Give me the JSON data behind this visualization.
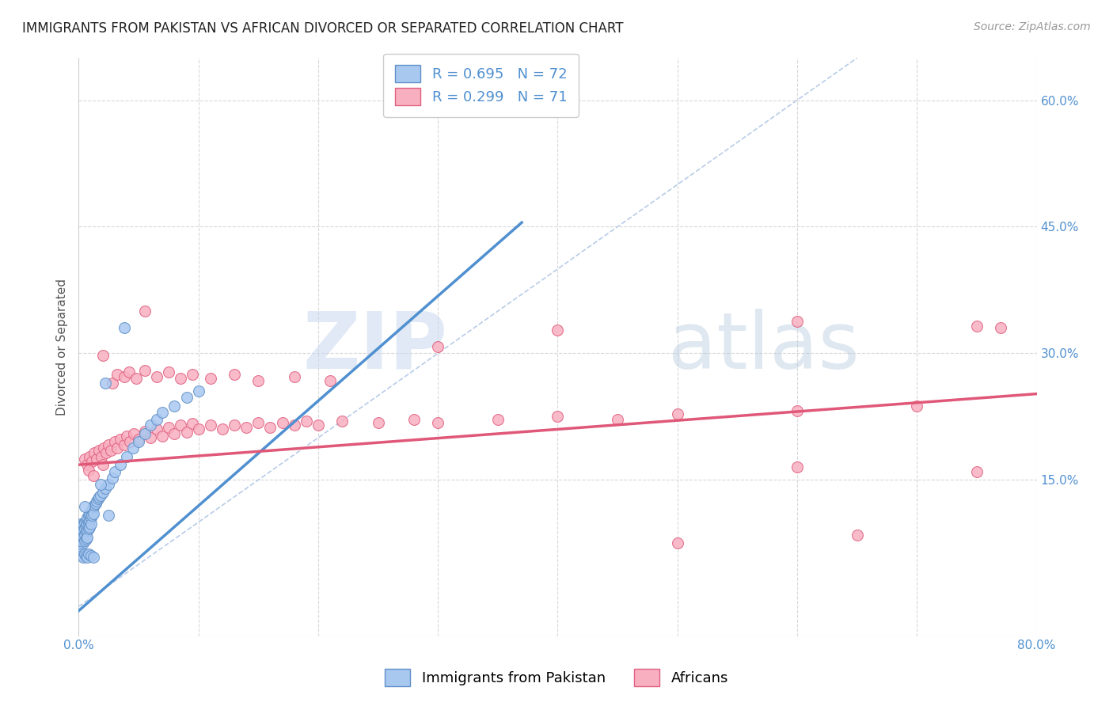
{
  "title": "IMMIGRANTS FROM PAKISTAN VS AFRICAN DIVORCED OR SEPARATED CORRELATION CHART",
  "source": "Source: ZipAtlas.com",
  "ylabel": "Divorced or Separated",
  "xlabel": "",
  "watermark_zip": "ZIP",
  "watermark_atlas": "atlas",
  "xlim": [
    0.0,
    0.8
  ],
  "ylim": [
    -0.035,
    0.65
  ],
  "ytick_positions": [
    0.15,
    0.3,
    0.45,
    0.6
  ],
  "yticklabels": [
    "15.0%",
    "30.0%",
    "45.0%",
    "60.0%"
  ],
  "grid_color": "#d8d8d8",
  "background_color": "#ffffff",
  "series1_label": "Immigrants from Pakistan",
  "series2_label": "Africans",
  "series1_color": "#a8c8f0",
  "series2_color": "#f8b0c0",
  "series1_edge_color": "#6090c8",
  "series2_edge_color": "#e06080",
  "series1_line_color": "#5090d0",
  "series2_line_color": "#e05878",
  "diagonal_color": "#b8cce8",
  "title_fontsize": 12,
  "axis_label_fontsize": 11,
  "tick_fontsize": 11,
  "source_fontsize": 10,
  "legend_fontsize": 13,
  "blue_line_x": [
    0.0,
    0.37
  ],
  "blue_line_y": [
    -0.005,
    0.455
  ],
  "pink_line_x": [
    0.0,
    0.8
  ],
  "pink_line_y": [
    0.168,
    0.252
  ],
  "diag_line_x": [
    0.0,
    0.65
  ],
  "diag_line_y": [
    0.0,
    0.65
  ],
  "pakistan_points": [
    [
      0.001,
      0.095
    ],
    [
      0.001,
      0.09
    ],
    [
      0.001,
      0.085
    ],
    [
      0.002,
      0.098
    ],
    [
      0.002,
      0.088
    ],
    [
      0.002,
      0.08
    ],
    [
      0.003,
      0.095
    ],
    [
      0.003,
      0.088
    ],
    [
      0.003,
      0.082
    ],
    [
      0.003,
      0.078
    ],
    [
      0.004,
      0.098
    ],
    [
      0.004,
      0.09
    ],
    [
      0.004,
      0.083
    ],
    [
      0.004,
      0.075
    ],
    [
      0.005,
      0.1
    ],
    [
      0.005,
      0.092
    ],
    [
      0.005,
      0.085
    ],
    [
      0.005,
      0.078
    ],
    [
      0.006,
      0.102
    ],
    [
      0.006,
      0.095
    ],
    [
      0.006,
      0.088
    ],
    [
      0.006,
      0.08
    ],
    [
      0.007,
      0.105
    ],
    [
      0.007,
      0.098
    ],
    [
      0.007,
      0.09
    ],
    [
      0.007,
      0.082
    ],
    [
      0.008,
      0.108
    ],
    [
      0.008,
      0.1
    ],
    [
      0.008,
      0.092
    ],
    [
      0.009,
      0.11
    ],
    [
      0.009,
      0.102
    ],
    [
      0.009,
      0.094
    ],
    [
      0.01,
      0.112
    ],
    [
      0.01,
      0.105
    ],
    [
      0.01,
      0.098
    ],
    [
      0.011,
      0.115
    ],
    [
      0.011,
      0.108
    ],
    [
      0.012,
      0.118
    ],
    [
      0.012,
      0.11
    ],
    [
      0.013,
      0.12
    ],
    [
      0.014,
      0.122
    ],
    [
      0.015,
      0.125
    ],
    [
      0.016,
      0.128
    ],
    [
      0.017,
      0.13
    ],
    [
      0.018,
      0.132
    ],
    [
      0.02,
      0.135
    ],
    [
      0.022,
      0.14
    ],
    [
      0.025,
      0.145
    ],
    [
      0.028,
      0.152
    ],
    [
      0.03,
      0.16
    ],
    [
      0.035,
      0.168
    ],
    [
      0.04,
      0.178
    ],
    [
      0.045,
      0.188
    ],
    [
      0.05,
      0.195
    ],
    [
      0.055,
      0.205
    ],
    [
      0.06,
      0.215
    ],
    [
      0.065,
      0.222
    ],
    [
      0.07,
      0.23
    ],
    [
      0.08,
      0.238
    ],
    [
      0.09,
      0.248
    ],
    [
      0.1,
      0.255
    ],
    [
      0.001,
      0.065
    ],
    [
      0.002,
      0.062
    ],
    [
      0.003,
      0.06
    ],
    [
      0.004,
      0.058
    ],
    [
      0.005,
      0.062
    ],
    [
      0.006,
      0.06
    ],
    [
      0.007,
      0.058
    ],
    [
      0.008,
      0.062
    ],
    [
      0.01,
      0.06
    ],
    [
      0.012,
      0.058
    ],
    [
      0.022,
      0.265
    ],
    [
      0.038,
      0.33
    ],
    [
      0.005,
      0.118
    ],
    [
      0.018,
      0.145
    ],
    [
      0.025,
      0.108
    ]
  ],
  "african_points": [
    [
      0.005,
      0.175
    ],
    [
      0.007,
      0.168
    ],
    [
      0.009,
      0.178
    ],
    [
      0.011,
      0.172
    ],
    [
      0.013,
      0.182
    ],
    [
      0.015,
      0.175
    ],
    [
      0.017,
      0.185
    ],
    [
      0.019,
      0.178
    ],
    [
      0.021,
      0.188
    ],
    [
      0.023,
      0.182
    ],
    [
      0.025,
      0.192
    ],
    [
      0.027,
      0.185
    ],
    [
      0.03,
      0.195
    ],
    [
      0.032,
      0.188
    ],
    [
      0.035,
      0.198
    ],
    [
      0.038,
      0.192
    ],
    [
      0.04,
      0.202
    ],
    [
      0.043,
      0.195
    ],
    [
      0.046,
      0.205
    ],
    [
      0.05,
      0.198
    ],
    [
      0.055,
      0.208
    ],
    [
      0.06,
      0.2
    ],
    [
      0.065,
      0.21
    ],
    [
      0.07,
      0.202
    ],
    [
      0.075,
      0.212
    ],
    [
      0.08,
      0.205
    ],
    [
      0.085,
      0.215
    ],
    [
      0.09,
      0.207
    ],
    [
      0.095,
      0.217
    ],
    [
      0.1,
      0.21
    ],
    [
      0.11,
      0.215
    ],
    [
      0.12,
      0.21
    ],
    [
      0.13,
      0.215
    ],
    [
      0.14,
      0.212
    ],
    [
      0.15,
      0.218
    ],
    [
      0.16,
      0.212
    ],
    [
      0.17,
      0.218
    ],
    [
      0.18,
      0.215
    ],
    [
      0.19,
      0.22
    ],
    [
      0.2,
      0.215
    ],
    [
      0.22,
      0.22
    ],
    [
      0.25,
      0.218
    ],
    [
      0.28,
      0.222
    ],
    [
      0.3,
      0.218
    ],
    [
      0.35,
      0.222
    ],
    [
      0.4,
      0.225
    ],
    [
      0.45,
      0.222
    ],
    [
      0.5,
      0.228
    ],
    [
      0.6,
      0.232
    ],
    [
      0.7,
      0.238
    ],
    [
      0.008,
      0.162
    ],
    [
      0.012,
      0.155
    ],
    [
      0.02,
      0.168
    ],
    [
      0.028,
      0.265
    ],
    [
      0.032,
      0.275
    ],
    [
      0.038,
      0.272
    ],
    [
      0.042,
      0.278
    ],
    [
      0.048,
      0.27
    ],
    [
      0.055,
      0.28
    ],
    [
      0.065,
      0.272
    ],
    [
      0.075,
      0.278
    ],
    [
      0.085,
      0.27
    ],
    [
      0.095,
      0.275
    ],
    [
      0.11,
      0.27
    ],
    [
      0.13,
      0.275
    ],
    [
      0.15,
      0.268
    ],
    [
      0.18,
      0.272
    ],
    [
      0.21,
      0.268
    ],
    [
      0.055,
      0.35
    ],
    [
      0.4,
      0.328
    ],
    [
      0.6,
      0.338
    ],
    [
      0.75,
      0.332
    ],
    [
      0.5,
      0.075
    ],
    [
      0.65,
      0.085
    ],
    [
      0.75,
      0.16
    ],
    [
      0.3,
      0.308
    ],
    [
      0.02,
      0.298
    ],
    [
      0.77,
      0.33
    ],
    [
      0.6,
      0.165
    ]
  ]
}
